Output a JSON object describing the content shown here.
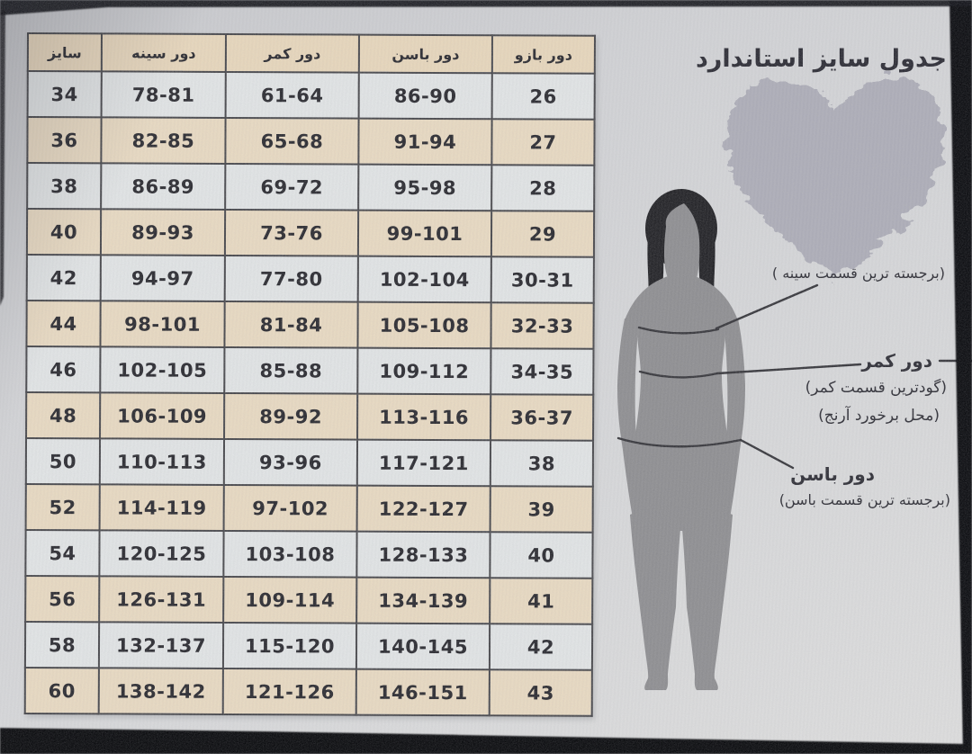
{
  "title": "جدول سایز استاندارد",
  "table": {
    "headers": [
      "سایز",
      "دور سینه",
      "دور کمر",
      "دور باسن",
      "دور بازو"
    ],
    "rows": [
      [
        "34",
        "78-81",
        "61-64",
        "86-90",
        "26"
      ],
      [
        "36",
        "82-85",
        "65-68",
        "91-94",
        "27"
      ],
      [
        "38",
        "86-89",
        "69-72",
        "95-98",
        "28"
      ],
      [
        "40",
        "89-93",
        "73-76",
        "99-101",
        "29"
      ],
      [
        "42",
        "94-97",
        "77-80",
        "102-104",
        "30-31"
      ],
      [
        "44",
        "98-101",
        "81-84",
        "105-108",
        "32-33"
      ],
      [
        "46",
        "102-105",
        "85-88",
        "109-112",
        "34-35"
      ],
      [
        "48",
        "106-109",
        "89-92",
        "113-116",
        "36-37"
      ],
      [
        "50",
        "110-113",
        "93-96",
        "117-121",
        "38"
      ],
      [
        "52",
        "114-119",
        "97-102",
        "122-127",
        "39"
      ],
      [
        "54",
        "120-125",
        "103-108",
        "128-133",
        "40"
      ],
      [
        "56",
        "126-131",
        "109-114",
        "134-139",
        "41"
      ],
      [
        "58",
        "132-137",
        "115-120",
        "140-145",
        "42"
      ],
      [
        "60",
        "138-142",
        "121-126",
        "146-151",
        "43"
      ]
    ]
  },
  "annotations": {
    "bust_note": "(برجسته ترین قسمت سینه )",
    "waist_label": "دور کمر",
    "waist_note_1": "(گودترین قسمت کمر)",
    "waist_note_2": "(محل برخورد آرنج)",
    "hip_label": "دور باسن",
    "hip_note": "(برجسته ترین قسمت باسن)"
  },
  "icons": {
    "figure": "woman-silhouette-icon",
    "heart": "speckled-heart-icon"
  },
  "colors": {
    "row_beige": "#e9dac2",
    "row_light": "#e2e5e6",
    "header_beige": "#e8d7bc",
    "table_border": "#46464a",
    "table_text": "#28282e",
    "silhouette_body": "#8e8e91",
    "silhouette_hair": "#202024",
    "annotation_text": "#2d2d35",
    "background": "#d3d4d6",
    "edge_black": "#0b0c10"
  }
}
